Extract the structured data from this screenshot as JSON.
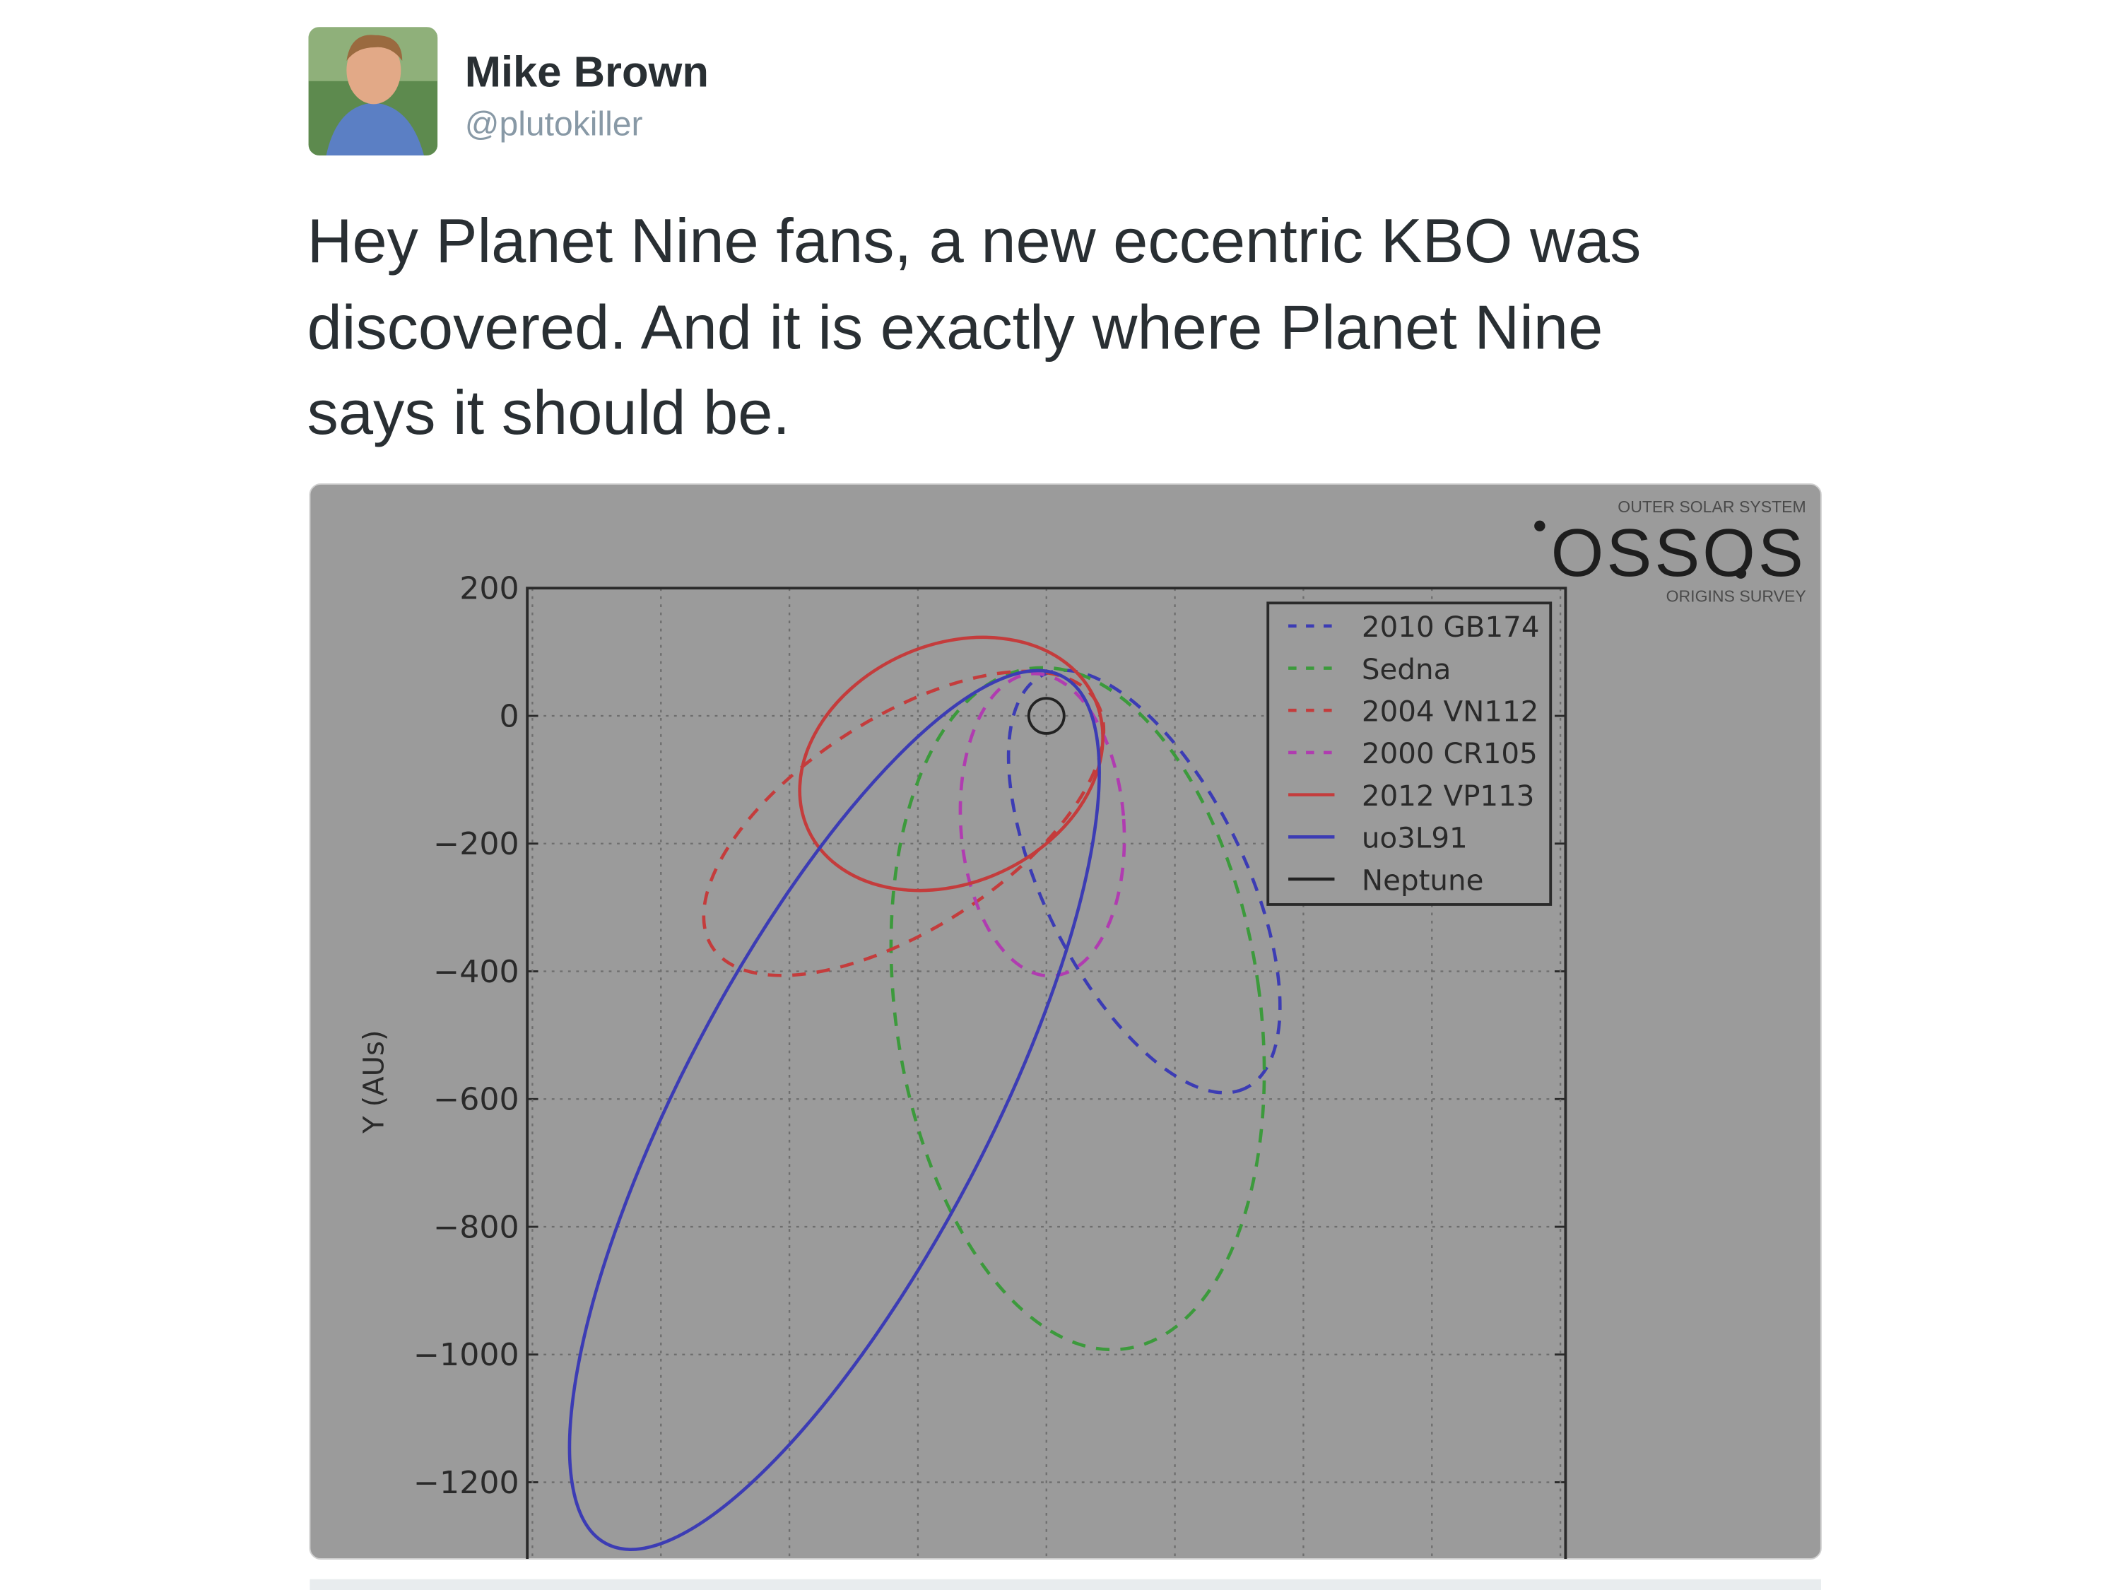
{
  "tweet": {
    "author": {
      "name": "Mike Brown",
      "handle": "@plutokiller"
    },
    "text_lines": [
      "Hey Planet Nine fans, a new eccentric KBO was",
      "discovered. And it is exactly where Planet Nine",
      "says it should be."
    ]
  },
  "chart_data": {
    "type": "orbit",
    "ylabel": "Y (AUs)",
    "ylim": [
      -1320,
      200
    ],
    "xlim": [
      -808,
      808
    ],
    "yticks": [
      200,
      0,
      {
        "value": -200,
        "label": "−200"
      },
      {
        "value": -400,
        "label": "−400"
      },
      {
        "value": -600,
        "label": "−600"
      },
      {
        "value": -800,
        "label": "−800"
      },
      {
        "value": -1000,
        "label": "−1000"
      },
      {
        "value": -1200,
        "label": "−1200"
      }
    ],
    "grid": true,
    "legend": "upper right",
    "series": [
      {
        "name": "2010 GB174",
        "color": "#3c3cb4",
        "linestyle": "dashed"
      },
      {
        "name": "Sedna",
        "color": "#3c9a3c",
        "linestyle": "dashed"
      },
      {
        "name": "2004 VN112",
        "color": "#c43c3c",
        "linestyle": "dashed"
      },
      {
        "name": "2000 CR105",
        "color": "#b03cb0",
        "linestyle": "dashed"
      },
      {
        "name": "2012 VP113",
        "color": "#c43c3c",
        "linestyle": "solid"
      },
      {
        "name": "uo3L91",
        "color": "#3c3cb4",
        "linestyle": "solid"
      },
      {
        "name": "Neptune",
        "color": "#222222",
        "linestyle": "solid"
      }
    ],
    "logo": {
      "top": "OUTER SOLAR SYSTEM",
      "main": "OSSOS",
      "bottom": "ORIGINS SURVEY"
    }
  }
}
